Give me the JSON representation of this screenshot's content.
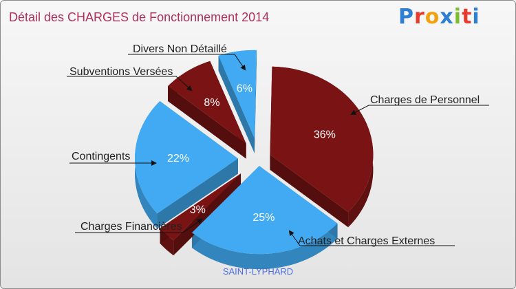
{
  "title": "Détail des CHARGES de Fonctionnement 2014",
  "logo": {
    "text": "Proxiti",
    "colors": [
      "#2e7fd1",
      "#e63c2f",
      "#f2a20f",
      "#2e7fd1",
      "#7bbd2f",
      "#e63c2f",
      "#2e7fd1"
    ]
  },
  "footer": "SAINT-LYPHARD",
  "colors": {
    "dark_red": "#7a1414",
    "blue": "#42aaf2"
  },
  "chart_data": {
    "type": "pie",
    "title": "Détail des CHARGES de Fonctionnement 2014",
    "slices": [
      {
        "label": "Charges de Personnel",
        "value": 36,
        "pct_text": "36%",
        "color": "#7a1414"
      },
      {
        "label": "Achats et Charges Externes",
        "value": 25,
        "pct_text": "25%",
        "color": "#42aaf2"
      },
      {
        "label": "Charges Financières",
        "value": 3,
        "pct_text": "3%",
        "color": "#7a1414"
      },
      {
        "label": "Contingents",
        "value": 22,
        "pct_text": "22%",
        "color": "#42aaf2"
      },
      {
        "label": "Subventions Versées",
        "value": 8,
        "pct_text": "8%",
        "color": "#7a1414"
      },
      {
        "label": "Divers Non Détaillé",
        "value": 6,
        "pct_text": "6%",
        "color": "#42aaf2"
      }
    ]
  }
}
